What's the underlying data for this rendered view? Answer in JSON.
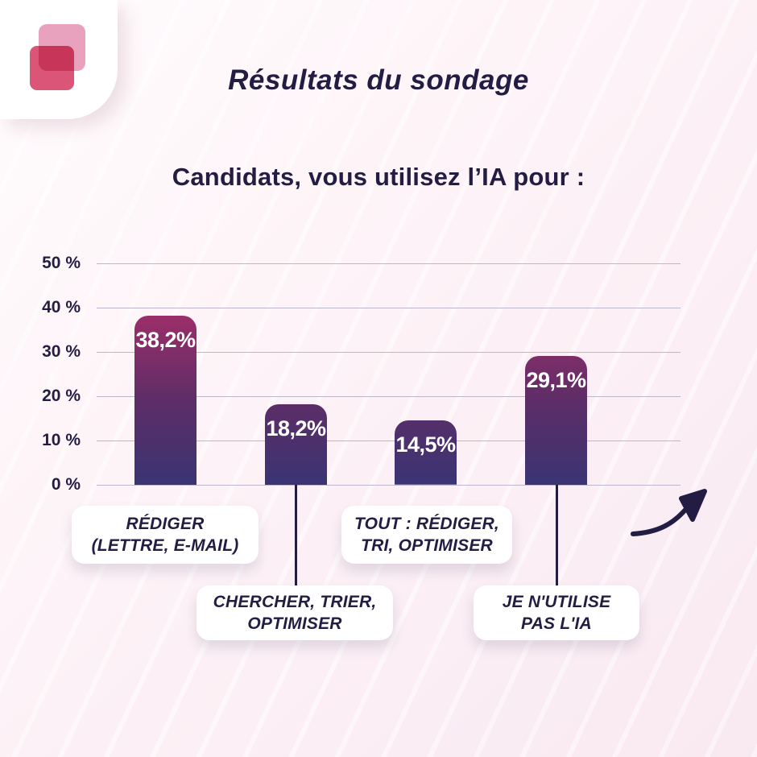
{
  "header": {
    "title": "Résultats du sondage",
    "subtitle": "Candidats, vous utilisez l’IA pour :"
  },
  "chart_data": {
    "type": "bar",
    "title": "Candidats, vous utilisez l’IA pour :",
    "categories": [
      "RÉDIGER (LETTRE, E-MAIL)",
      "CHERCHER, TRIER, OPTIMISER",
      "TOUT : RÉDIGER, TRI, OPTIMISER",
      "JE N'UTILISE PAS L'IA"
    ],
    "values": [
      38.2,
      18.2,
      14.5,
      29.1
    ],
    "value_labels": [
      "38,2%",
      "18,2%",
      "14,5%",
      "29,1%"
    ],
    "category_lines": [
      [
        "RÉDIGER",
        "(LETTRE, E-MAIL)"
      ],
      [
        "CHERCHER, TRIER,",
        "OPTIMISER"
      ],
      [
        "TOUT : RÉDIGER,",
        "TRI, OPTIMISER"
      ],
      [
        "JE N'UTILISE",
        "PAS L'IA"
      ]
    ],
    "yticks": [
      "50 %",
      "40 %",
      "30 %",
      "20 %",
      "10 %",
      "0 %"
    ],
    "ylim": [
      0,
      50
    ],
    "grid": true,
    "xlabel": "",
    "ylabel": ""
  },
  "icons": {
    "logo": "overlapping-squares-logo",
    "arrow": "curved-arrow-up-right"
  },
  "colors": {
    "text_navy": "#231D43",
    "bar_gradient_top": "#9C2E69",
    "bar_gradient_mid": "#5E2D67",
    "bar_gradient_bottom": "#3A3473",
    "grid_line": "#BDB7CB",
    "background_top": "#FFFCFD",
    "background_bottom": "#F9E9F1",
    "logo_pink_light": "#E9A2BD",
    "logo_pink_dark": "#DA5578",
    "callout_bg": "#FFFFFF",
    "value_label_text": "#FFFFFF"
  }
}
